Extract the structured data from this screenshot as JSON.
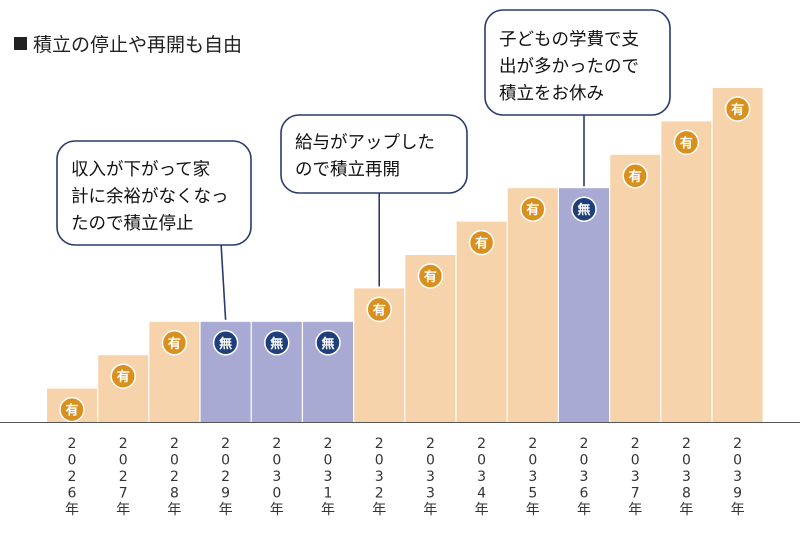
{
  "chart_data": {
    "type": "bar",
    "title": "積立の停止や再開も自由",
    "categories": [
      "2026年",
      "2027年",
      "2028年",
      "2029年",
      "2030年",
      "2031年",
      "2032年",
      "2033年",
      "2034年",
      "2035年",
      "2036年",
      "2037年",
      "2038年",
      "2039年"
    ],
    "values": [
      1,
      2,
      3,
      3,
      3,
      3,
      4,
      5,
      6,
      7,
      7,
      8,
      9,
      10
    ],
    "status": [
      "有",
      "有",
      "有",
      "無",
      "無",
      "無",
      "有",
      "有",
      "有",
      "有",
      "無",
      "有",
      "有",
      "有"
    ],
    "ylim": [
      0,
      10
    ],
    "grid": false,
    "colors": {
      "active_bar": "#f7d3ab",
      "paused_bar": "#a8aad4",
      "active_badge": "#d9901e",
      "paused_badge": "#1f3f7a",
      "bubble_border": "#2a3b6e",
      "axis": "#555555"
    },
    "annotations": [
      {
        "lines": [
          "収入が下がって家",
          "計に余裕がなくなっ",
          "たので積立停止"
        ],
        "target_index": 3
      },
      {
        "lines": [
          "給与がアップした",
          "ので積立再開"
        ],
        "target_index": 6
      },
      {
        "lines": [
          "子どもの学費で支",
          "出が多かったので",
          "積立をお休み"
        ],
        "target_index": 10
      }
    ]
  }
}
